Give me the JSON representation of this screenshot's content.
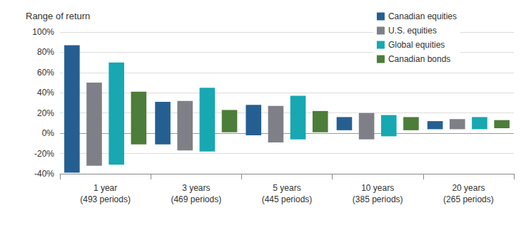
{
  "chart_data": {
    "type": "floating_bar",
    "y_label": "Range of return",
    "categories": [
      "1 year\n(493 periods)",
      "3 years\n(469 periods)",
      "5 years\n(445 periods)",
      "10 years\n(385 periods)",
      "20 years\n(265 periods)"
    ],
    "series": [
      {
        "name": "Canadian equities",
        "color": "#255f92",
        "values": [
          [
            -39,
            87
          ],
          [
            -11,
            31
          ],
          [
            -2,
            28
          ],
          [
            3,
            16
          ],
          [
            4,
            12
          ]
        ]
      },
      {
        "name": "U.S. equities",
        "color": "#7f8087",
        "values": [
          [
            -32,
            50
          ],
          [
            -17,
            32
          ],
          [
            -9,
            27
          ],
          [
            -6,
            20
          ],
          [
            4,
            14
          ]
        ]
      },
      {
        "name": "Global equities",
        "color": "#17a8b2",
        "values": [
          [
            -31,
            70
          ],
          [
            -18,
            45
          ],
          [
            -6,
            37
          ],
          [
            -3,
            18
          ],
          [
            4,
            16
          ]
        ]
      },
      {
        "name": "Canadian bonds",
        "color": "#4c7d39",
        "values": [
          [
            -11,
            41
          ],
          [
            1,
            23
          ],
          [
            1,
            22
          ],
          [
            3,
            16
          ],
          [
            5,
            13
          ]
        ]
      }
    ],
    "ylim": [
      -40,
      100
    ],
    "yticks": [
      {
        "value": -40,
        "label": "-40%"
      },
      {
        "value": -20,
        "label": "-20%"
      },
      {
        "value": 0,
        "label": "0%"
      },
      {
        "value": 20,
        "label": "20%"
      },
      {
        "value": 40,
        "label": "40%"
      },
      {
        "value": 60,
        "label": "60%"
      },
      {
        "value": 80,
        "label": "80%"
      },
      {
        "value": 100,
        "label": "100%"
      }
    ],
    "grid": true,
    "legend": "upper right"
  }
}
